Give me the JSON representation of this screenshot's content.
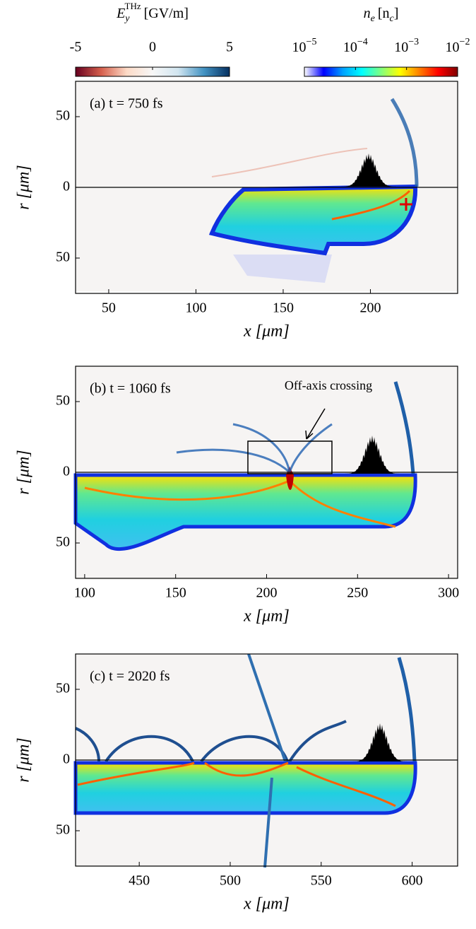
{
  "colorbars": [
    {
      "symbol": "E",
      "sub": "y",
      "sup": "THz",
      "unit": "[GV/m]",
      "lim": [
        -5,
        5
      ],
      "ticks": [
        -5,
        0,
        5
      ],
      "colors": [
        "#67001f",
        "#d6604d",
        "#fddbc7",
        "#f7f7f7",
        "#d1e5f0",
        "#4393c3",
        "#053061"
      ]
    },
    {
      "symbol": "n",
      "sub": "e",
      "unit": "[n",
      "unitSub": "c",
      "unitEnd": "]",
      "lim": [
        1e-05,
        0.01
      ],
      "log": true,
      "ticks": [
        {
          "value": 1e-05,
          "label": "10",
          "exponent": "−5"
        },
        {
          "value": 0.0001,
          "label": "10",
          "exponent": "−4"
        },
        {
          "value": 0.001,
          "label": "10",
          "exponent": "−3"
        },
        {
          "value": 0.01,
          "label": "10",
          "exponent": "−2"
        }
      ],
      "colors": [
        "#ffffff",
        "#0000ff",
        "#00a0ff",
        "#00ffff",
        "#80ff80",
        "#ffff00",
        "#ff8000",
        "#ff0000",
        "#800000"
      ]
    }
  ],
  "chart_data": [
    {
      "type": "heatmap",
      "title": "(a) t = 750 fs",
      "xlabel": "x [μm]",
      "ylabel": "r [μm]",
      "xlim": [
        31,
        250
      ],
      "xticks": [
        50,
        100,
        150,
        200
      ],
      "ylim": [
        -75,
        75
      ],
      "yticks": [
        50,
        0,
        {
          "value": -50,
          "label": "50"
        }
      ]
    },
    {
      "type": "heatmap",
      "title": "(b) t = 1060 fs",
      "xlabel": "x [μm]",
      "ylabel": "r [μm]",
      "xlim": [
        95,
        305
      ],
      "xticks": [
        100,
        150,
        200,
        250,
        300
      ],
      "ylim": [
        -75,
        75
      ],
      "yticks": [
        50,
        0,
        {
          "value": -50,
          "label": "50"
        }
      ],
      "annotation": "Off-axis crossing"
    },
    {
      "type": "heatmap",
      "title": "(c) t = 2020 fs",
      "xlabel": "x [μm]",
      "ylabel": "r [μm]",
      "xlim": [
        415,
        625
      ],
      "xticks": [
        450,
        500,
        550,
        600
      ],
      "ylim": [
        -75,
        75
      ],
      "yticks": [
        50,
        0,
        {
          "value": -50,
          "label": "50"
        }
      ]
    }
  ]
}
